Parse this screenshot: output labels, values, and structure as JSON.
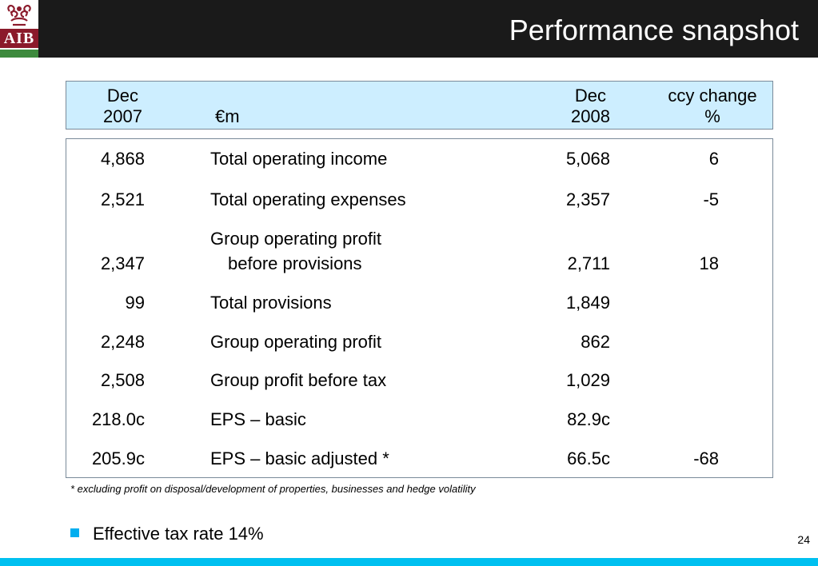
{
  "header": {
    "title": "Performance snapshot",
    "logo_text": "AIB",
    "brand_color": "#8b1a2b"
  },
  "table": {
    "head": {
      "col1_line1": "Dec",
      "col1_line2": "2007",
      "unit": "€m",
      "col3_line1": "Dec",
      "col3_line2": "2008",
      "col4_line1": "ccy change",
      "col4_line2": "%"
    },
    "rows": [
      {
        "prev": "4,868",
        "label": "Total operating income",
        "curr": "5,068",
        "change": "6"
      },
      {
        "prev": "2,521",
        "label": "Total operating expenses",
        "curr": "2,357",
        "change": "-5"
      },
      {
        "prev": "2,347",
        "label_line1": "Group operating profit",
        "label_line2": "before provisions",
        "curr": "2,711",
        "change": "18"
      },
      {
        "prev": "99",
        "label": "Total provisions",
        "curr": "1,849",
        "change": ""
      },
      {
        "prev": "2,248",
        "label": "Group operating profit",
        "curr": "862",
        "change": ""
      },
      {
        "prev": "2,508",
        "label": "Group profit before tax",
        "curr": "1,029",
        "change": ""
      },
      {
        "prev": "218.0c",
        "label": "EPS – basic",
        "curr": "82.9c",
        "change": ""
      },
      {
        "prev": "205.9c",
        "label": "EPS – basic adjusted *",
        "curr": "66.5c",
        "change": "-68"
      }
    ]
  },
  "footnote": "* excluding profit on disposal/development of properties, businesses and hedge volatility",
  "bullet": "Effective tax rate 14%",
  "page_number": "24",
  "colors": {
    "header_bg": "#1a1a1a",
    "table_head_bg": "#cdeeff",
    "accent": "#00aeef",
    "bottom_bar": "#00c0f0"
  }
}
